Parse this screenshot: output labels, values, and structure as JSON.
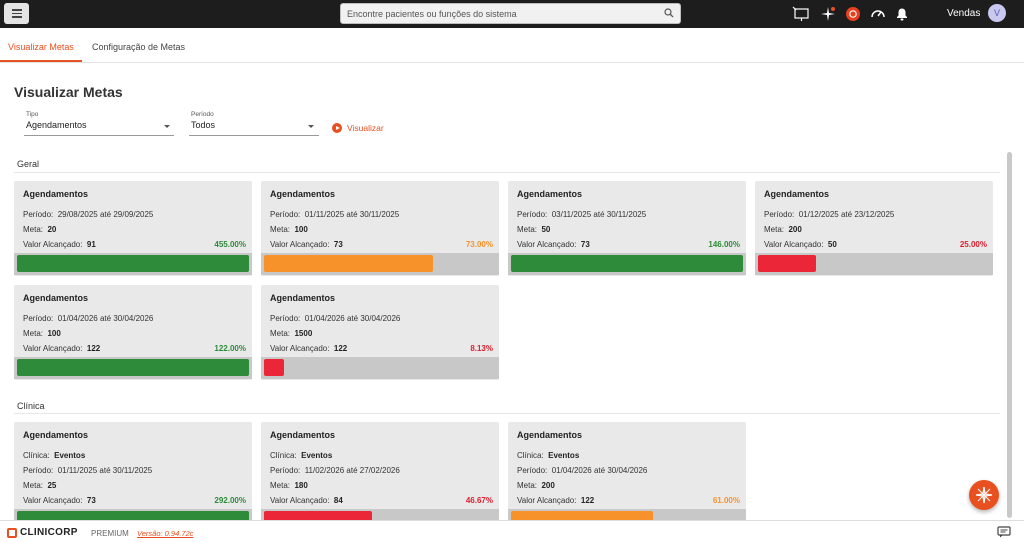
{
  "colors": {
    "accent": "#e8501f",
    "green": "#2e8b3a",
    "orange": "#f7922b",
    "red": "#ea2638",
    "pct_green": "#2e8b3a",
    "pct_orange": "#f7922b",
    "pct_red": "#e02030"
  },
  "header": {
    "search_placeholder": "Encontre pacientes ou funções do sistema",
    "user_name": "Vendas",
    "avatar_initial": "V",
    "icons": [
      "menu-icon",
      "search-icon",
      "presentation-icon",
      "sparkle-icon",
      "record-icon",
      "speedometer-icon",
      "bell-icon"
    ]
  },
  "tabs": [
    {
      "label": "Visualizar Metas",
      "active": true
    },
    {
      "label": "Configuração de Metas",
      "active": false
    }
  ],
  "page": {
    "title": "Visualizar Metas"
  },
  "filters": {
    "tipo": {
      "label": "Tipo",
      "value": "Agendamentos"
    },
    "periodo": {
      "label": "Período",
      "value": "Todos"
    },
    "visualizar_label": "Visualizar"
  },
  "labels": {
    "periodo": "Período:",
    "ate": "até",
    "meta": "Meta:",
    "valor": "Valor Alcançado:",
    "clinica": "Clínica:"
  },
  "sections": [
    {
      "title": "Geral",
      "cards": [
        {
          "title": "Agendamentos",
          "start": "29/08/2025",
          "end": "29/09/2025",
          "meta": "20",
          "valor": "91",
          "percent_text": "455.00%",
          "progress": 1.0,
          "status": "green"
        },
        {
          "title": "Agendamentos",
          "start": "01/11/2025",
          "end": "30/11/2025",
          "meta": "100",
          "valor": "73",
          "percent_text": "73.00%",
          "progress": 0.73,
          "status": "orange"
        },
        {
          "title": "Agendamentos",
          "start": "03/11/2025",
          "end": "30/11/2025",
          "meta": "50",
          "valor": "73",
          "percent_text": "146.00%",
          "progress": 1.0,
          "status": "green"
        },
        {
          "title": "Agendamentos",
          "start": "01/12/2025",
          "end": "23/12/2025",
          "meta": "200",
          "valor": "50",
          "percent_text": "25.00%",
          "progress": 0.25,
          "status": "red"
        },
        {
          "title": "Agendamentos",
          "start": "01/04/2026",
          "end": "30/04/2026",
          "meta": "100",
          "valor": "122",
          "percent_text": "122.00%",
          "progress": 1.0,
          "status": "green"
        },
        {
          "title": "Agendamentos",
          "start": "01/04/2026",
          "end": "30/04/2026",
          "meta": "1500",
          "valor": "122",
          "percent_text": "8.13%",
          "progress": 0.0813,
          "status": "red"
        }
      ]
    },
    {
      "title": "Clínica",
      "cards": [
        {
          "title": "Agendamentos",
          "clinica": "Eventos",
          "start": "01/11/2025",
          "end": "30/11/2025",
          "meta": "25",
          "valor": "73",
          "percent_text": "292.00%",
          "progress": 1.0,
          "status": "green"
        },
        {
          "title": "Agendamentos",
          "clinica": "Eventos",
          "start": "11/02/2026",
          "end": "27/02/2026",
          "meta": "180",
          "valor": "84",
          "percent_text": "46.67%",
          "progress": 0.4667,
          "status": "red"
        },
        {
          "title": "Agendamentos",
          "clinica": "Eventos",
          "start": "01/04/2026",
          "end": "30/04/2026",
          "meta": "200",
          "valor": "122",
          "percent_text": "61.00%",
          "progress": 0.61,
          "status": "orange"
        }
      ]
    }
  ],
  "footer": {
    "brand": "CLINICORP",
    "tier": "PREMIUM",
    "version": "Versão: 0.94.72c"
  }
}
